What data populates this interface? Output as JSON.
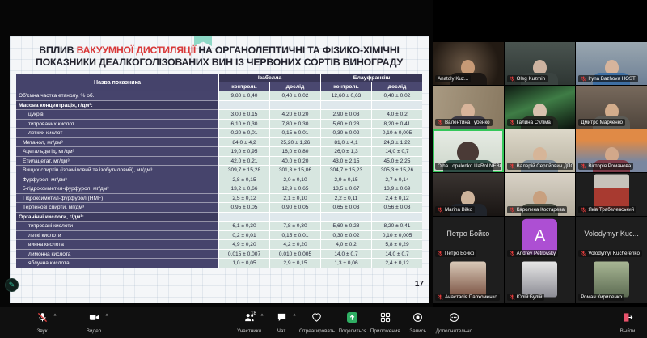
{
  "slide": {
    "title": {
      "pre": "ВПЛИВ ",
      "highlight": "ВАКУУМНОЇ ДИСТИЛЯЦІЇ",
      "post": " НА ОРГАНОЛЕПТИЧНІ  ТА ФІЗИКО-ХІМІЧНІ",
      "line2": "ПОКАЗНИКИ ДЕАЛКОГОЛІЗОВАНИХ ВИН ІЗ ЧЕРВОНИХ СОРТІВ ВИНОГРАДУ"
    },
    "page_number": "17",
    "table": {
      "col_header": "Назва показника",
      "groups": [
        "Ізабелла",
        "Блауфранкіш"
      ],
      "subcols": [
        "контроль",
        "дослід",
        "контроль",
        "дослід"
      ],
      "rows": [
        {
          "label": "Об'ємна частка етанолу, % об.",
          "indent": 0,
          "section": false,
          "values": [
            "9,80 ± 0,40",
            "0,40 ± 0,02",
            "12,60 ± 0,63",
            "0,40 ± 0,02"
          ]
        },
        {
          "label": "Масова концентрація, г/дм³:",
          "indent": 0,
          "section": true
        },
        {
          "label": "цукрів",
          "indent": 2,
          "section": false,
          "values": [
            "3,00 ± 0,15",
            "4,20 ± 0,20",
            "2,90 ± 0,03",
            "4,0 ± 0,2"
          ]
        },
        {
          "label": "титрованих кислот",
          "indent": 2,
          "section": false,
          "values": [
            "6,10 ± 0,30",
            "7,80 ± 0,30",
            "5,60 ± 0,28",
            "8,20 ± 0,41"
          ]
        },
        {
          "label": "летких кислот",
          "indent": 2,
          "section": false,
          "values": [
            "0,20 ± 0,01",
            "0,15 ± 0,01",
            "0,30 ± 0,02",
            "0,10 ± 0,005"
          ]
        },
        {
          "label": "Метанол, мг/дм³",
          "indent": 1,
          "section": false,
          "values": [
            "84,0 ± 4,2",
            "25,20 ± 1,26",
            "81,0 ± 4,1",
            "24,3 ± 1,22"
          ]
        },
        {
          "label": "Ацетальдегід, мг/дм³",
          "indent": 1,
          "section": false,
          "values": [
            "19,0 ± 0,95",
            "16,0 ± 0,80",
            "26,0 ± 1,3",
            "14,0 ± 0,7"
          ]
        },
        {
          "label": "Етилацетат, мг/дм³",
          "indent": 1,
          "section": false,
          "values": [
            "42,0 ± 0,21",
            "40,0 ± 0,20",
            "43,0 ± 2,15",
            "45,0 ± 2,25"
          ]
        },
        {
          "label": "Вищих спиртів (ізоаміловий та ізобутиловий), мг/дм³",
          "indent": 1,
          "section": false,
          "values": [
            "309,7 ± 15,28",
            "301,3 ± 15,06",
            "304,7 ± 15,23",
            "305,3 ± 15,26"
          ]
        },
        {
          "label": "Фурфурол, мг/дм³",
          "indent": 1,
          "section": false,
          "values": [
            "2,8 ± 0,15",
            "2,0 ± 0,10",
            "2,9 ± 0,15",
            "2,7 ± 0,14"
          ]
        },
        {
          "label": "5-гідроксиметил-фурфурол, мг/дм³",
          "indent": 1,
          "section": false,
          "values": [
            "13,2 ± 0,66",
            "12,9 ± 0,65",
            "13,5 ± 0,67",
            "13,9 ± 0,69"
          ]
        },
        {
          "label": "Гідроксиметил-фурфурол (HMF)",
          "indent": 1,
          "section": false,
          "values": [
            "2,5 ± 0,12",
            "2,1 ± 0,10",
            "2,2 ± 0,11",
            "2,4 ± 0,12"
          ]
        },
        {
          "label": "Терпенові спирти, мг/дм³",
          "indent": 1,
          "section": false,
          "values": [
            "0,95 ± 0,05",
            "0,90 ± 0,05",
            "0,65 ± 0,03",
            "0,56 ± 0,03"
          ]
        },
        {
          "label": "Органічні кислоти, г/дм³:",
          "indent": 0,
          "section": true
        },
        {
          "label": "титровані кислоти",
          "indent": 2,
          "section": false,
          "values": [
            "6,1 ± 0,30",
            "7,8 ± 0,30",
            "5,60 ± 0,28",
            "8,20 ± 0,41"
          ]
        },
        {
          "label": "леткі кислоти",
          "indent": 2,
          "section": false,
          "values": [
            "0,2 ± 0,01",
            "0,15 ± 0,01",
            "0,30 ± 0,02",
            "0,10 ± 0,005"
          ]
        },
        {
          "label": "винна кислота",
          "indent": 2,
          "section": false,
          "values": [
            "4,9 ± 0,20",
            "4,2 ± 0,20",
            "4,0 ± 0,2",
            "5,8 ± 0,29"
          ]
        },
        {
          "label": "лимонна кислота",
          "indent": 2,
          "section": false,
          "values": [
            "0,015 ± 0,007",
            "0,010 ± 0,005",
            "14,0 ± 0,7",
            "14,0 ± 0,7"
          ]
        },
        {
          "label": "яблучна кислота",
          "indent": 2,
          "section": false,
          "values": [
            "1,0 ± 0,05",
            "2,9 ± 0,15",
            "1,3 ± 0,06",
            "2,4 ± 0,12"
          ]
        }
      ]
    }
  },
  "participants": {
    "tiles": [
      {
        "label": "Anatoly Kuz...",
        "muted": false,
        "type": "video"
      },
      {
        "label": "Oleg Kuzmin",
        "muted": true,
        "type": "video"
      },
      {
        "label": "Iryna Bazhova HOST",
        "muted": true,
        "type": "video"
      },
      {
        "label": "Валентина Губенко",
        "muted": true,
        "type": "video"
      },
      {
        "label": "Галина Суліма",
        "muted": true,
        "type": "video"
      },
      {
        "label": "Дмитро Марченко",
        "muted": false,
        "type": "video"
      },
      {
        "label": "Olha Lopalenko UaRol NEBOM",
        "muted": false,
        "type": "video",
        "active": true
      },
      {
        "label": "Валерій Сергійович ДПС",
        "muted": true,
        "type": "video"
      },
      {
        "label": "Вікторія Романова",
        "muted": true,
        "type": "video"
      },
      {
        "label": "Marina Bilko",
        "muted": true,
        "type": "video"
      },
      {
        "label": "Каролина Костарева",
        "muted": true,
        "type": "video"
      },
      {
        "label": "Яків Трабелевський",
        "muted": true,
        "type": "photo"
      },
      {
        "label": "Петро Бойко",
        "muted": true,
        "type": "nameplate",
        "display": "Петро Бойко"
      },
      {
        "label": "Andrey Petrovsky",
        "muted": true,
        "type": "letter",
        "letter": "A"
      },
      {
        "label": "Volodymyr Kucherenko",
        "muted": true,
        "type": "nameplate",
        "display": "Volodymyr Kuc..."
      },
      {
        "label": "Анастасія Пархоменко",
        "muted": true,
        "type": "photo"
      },
      {
        "label": "Юрій Булій",
        "muted": true,
        "type": "photo"
      },
      {
        "label": "Роман Кириленко",
        "muted": false,
        "type": "photo"
      }
    ]
  },
  "toolbar": {
    "left": [
      {
        "id": "audio",
        "icon": "mic-off",
        "label": "Звук",
        "caret": true
      },
      {
        "id": "video",
        "icon": "camera",
        "label": "Видео",
        "caret": true
      }
    ],
    "center": [
      {
        "id": "participants",
        "icon": "participants",
        "label": "Участники",
        "badge": "18",
        "caret": true
      },
      {
        "id": "chat",
        "icon": "chat",
        "label": "Чат",
        "caret": true
      },
      {
        "id": "react",
        "icon": "heart",
        "label": "Отреагировать"
      },
      {
        "id": "share",
        "icon": "share",
        "label": "Поделиться"
      },
      {
        "id": "apps",
        "icon": "apps",
        "label": "Приложения"
      },
      {
        "id": "record",
        "icon": "record",
        "label": "Запись"
      },
      {
        "id": "more",
        "icon": "more",
        "label": "Дополнительно"
      }
    ],
    "right": [
      {
        "id": "leave",
        "icon": "exit",
        "label": "Выйти"
      }
    ]
  },
  "colors": {
    "active_speaker_border": "#35c75a",
    "muted_mic_red": "#e03b3b",
    "avatar_purple": "#ad4fd3",
    "share_button_green": "#2fae63",
    "table_header_bg": "#45436b",
    "table_cell_bg": "#d7e6e0",
    "title_highlight_red": "#d93838",
    "slide_ribbon_teal": "#8ed8c6"
  }
}
